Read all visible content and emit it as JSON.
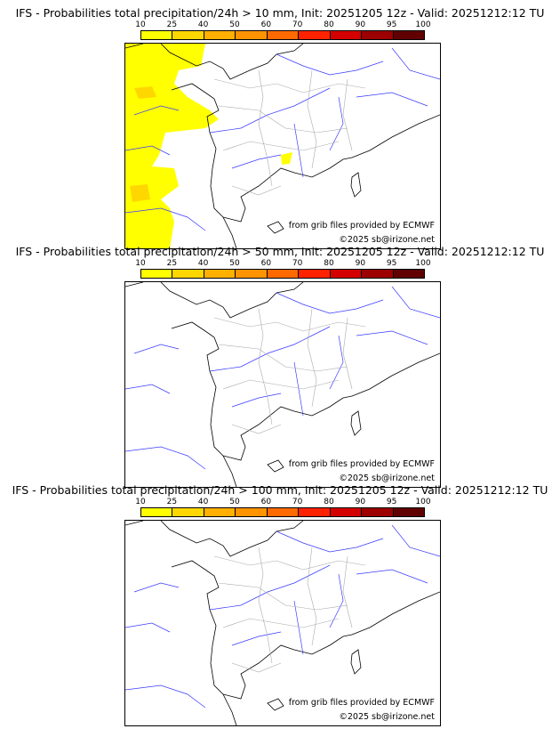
{
  "panels": [
    {
      "title": "IFS - Probabilities total precipitation/24h > 10 mm, Init: 20251205 12z - Valid: 20251212:12 TU",
      "has_precip": true
    },
    {
      "title": "IFS - Probabilities total precipitation/24h > 50 mm, Init: 20251205 12z - Valid: 20251212:12 TU",
      "has_precip": false
    },
    {
      "title": "IFS - Probabilities total precipitation/24h > 100 mm, Init: 20251205 12z - Valid: 20251212:12 TU",
      "has_precip": false
    }
  ],
  "colorbar": {
    "ticks": [
      "10",
      "25",
      "40",
      "50",
      "60",
      "70",
      "80",
      "90",
      "95",
      "100"
    ],
    "colors": [
      "#ffff00",
      "#ffd700",
      "#ffb000",
      "#ff9400",
      "#ff6a00",
      "#ff2200",
      "#d40000",
      "#9c0000",
      "#600000"
    ]
  },
  "credits": {
    "source": "from grib files provided by ECMWF",
    "copyright": "©2025 sb@irizone.net"
  }
}
